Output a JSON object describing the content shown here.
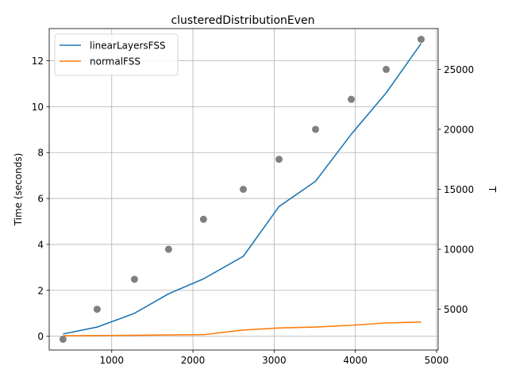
{
  "chart_data": {
    "type": "line",
    "title": "clusteredDistributionEven",
    "xlabel": "",
    "ylabel": "Time (seconds)",
    "y2label": "T",
    "xlim": [
      230,
      5020
    ],
    "ylim": [
      -0.6,
      13.4
    ],
    "y2lim": [
      1600,
      28400
    ],
    "x_ticks": [
      1000,
      2000,
      3000,
      4000,
      5000
    ],
    "y_ticks": [
      0,
      2,
      4,
      6,
      8,
      10,
      12
    ],
    "y2_ticks": [
      5000,
      10000,
      15000,
      20000,
      25000
    ],
    "grid": true,
    "legend_position": "top-left",
    "series": [
      {
        "name": "linearLayersFSS",
        "color": "#1f77b4",
        "x": [
          400,
          820,
          1280,
          1700,
          2130,
          2620,
          3060,
          3510,
          3950,
          4380,
          4810
        ],
        "y": [
          0.1,
          0.4,
          1.0,
          1.85,
          2.5,
          3.48,
          5.65,
          6.75,
          8.8,
          10.6,
          12.75
        ]
      },
      {
        "name": "normalFSS",
        "color": "#ff7f0e",
        "x": [
          400,
          820,
          1280,
          1700,
          2130,
          2620,
          3060,
          3510,
          3950,
          4380,
          4810
        ],
        "y": [
          0.02,
          0.03,
          0.04,
          0.06,
          0.07,
          0.27,
          0.36,
          0.4,
          0.48,
          0.58,
          0.62
        ]
      },
      {
        "name": "T",
        "axis": "right",
        "style": "scatter",
        "color": "#808080",
        "x": [
          400,
          820,
          1280,
          1700,
          2130,
          2620,
          3060,
          3510,
          3950,
          4380,
          4810
        ],
        "y": [
          2500,
          5000,
          7500,
          10000,
          12500,
          15000,
          17500,
          20000,
          22500,
          25000,
          27500
        ]
      }
    ]
  }
}
